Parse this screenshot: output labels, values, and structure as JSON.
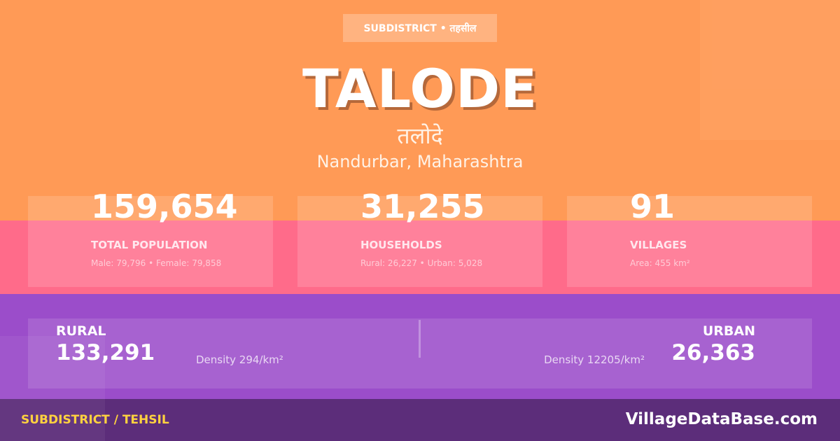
{
  "colors": {
    "header": "#FF9A56",
    "stats_band": "#FF6B8A",
    "breakdown_band": "#9B4DCA",
    "footer": "#5C2D7A",
    "footer_label": "#FFD23F"
  },
  "badge": "SUBDISTRICT • तहसील",
  "title": "TALODE",
  "native_name": "तलोदे",
  "location": "Nandurbar, Maharashtra",
  "stats": [
    {
      "value": "159,654",
      "label": "TOTAL POPULATION",
      "detail": "Male: 79,796 • Female: 79,858"
    },
    {
      "value": "31,255",
      "label": "HOUSEHOLDS",
      "detail": "Rural: 26,227 • Urban: 5,028"
    },
    {
      "value": "91",
      "label": "VILLAGES",
      "detail": "Area: 455 km²"
    }
  ],
  "rural": {
    "label": "RURAL",
    "value": "133,291",
    "density": "Density 294/km²"
  },
  "urban": {
    "label": "URBAN",
    "value": "26,363",
    "density": "Density 12205/km²"
  },
  "footer": {
    "category": "SUBDISTRICT / TEHSIL",
    "brand": "VillageDataBase.com"
  }
}
